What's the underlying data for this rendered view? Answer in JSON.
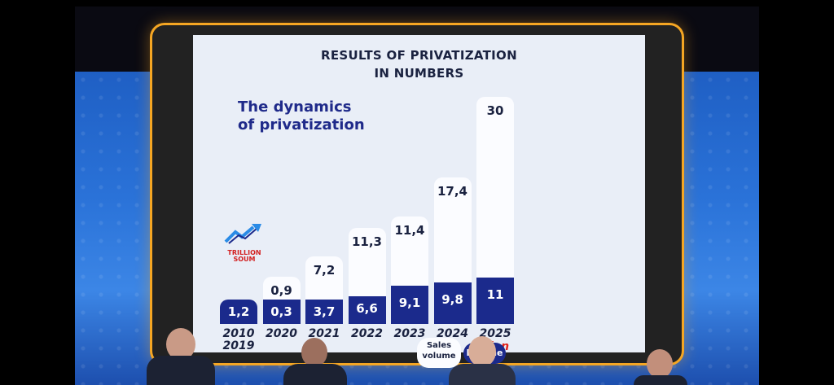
{
  "slide": {
    "title_line1": "RESULTS OF PRIVATIZATION",
    "title_line2": "IN NUMBERS",
    "subtitle_line1": "The dynamics",
    "subtitle_line2": "of privatization",
    "unit_line1": "TRILLION",
    "unit_line2": "SOUM",
    "unit_icon": "trend-up-icon"
  },
  "chart_data": {
    "type": "bar",
    "categories": [
      "2010-2019",
      "2020",
      "2021",
      "2022",
      "2023",
      "2024",
      "2025"
    ],
    "year_labels": [
      [
        "2010",
        "2019"
      ],
      [
        "2020"
      ],
      [
        "2021"
      ],
      [
        "2022"
      ],
      [
        "2023"
      ],
      [
        "2024"
      ],
      [
        "2025"
      ]
    ],
    "plan_label": "plan",
    "series": [
      {
        "name": "Sales volume",
        "values": [
          null,
          0.9,
          7.2,
          11.3,
          11.4,
          17.4,
          30
        ],
        "labels": [
          "",
          "0,9",
          "7,2",
          "11,3",
          "11,4",
          "17,4",
          "30"
        ]
      },
      {
        "name": "Income",
        "values": [
          1.2,
          0.3,
          3.7,
          6.6,
          9.1,
          9.8,
          11
        ],
        "labels": [
          "1,2",
          "0,3",
          "3,7",
          "6,6",
          "9,1",
          "9,8",
          "11"
        ]
      }
    ],
    "legend": {
      "sales_line1": "Sales",
      "sales_line2": "volume",
      "income": "Income"
    },
    "colors": {
      "sales": "#fbfcff",
      "income": "#1b2a8c",
      "plan": "#e2231a"
    }
  }
}
